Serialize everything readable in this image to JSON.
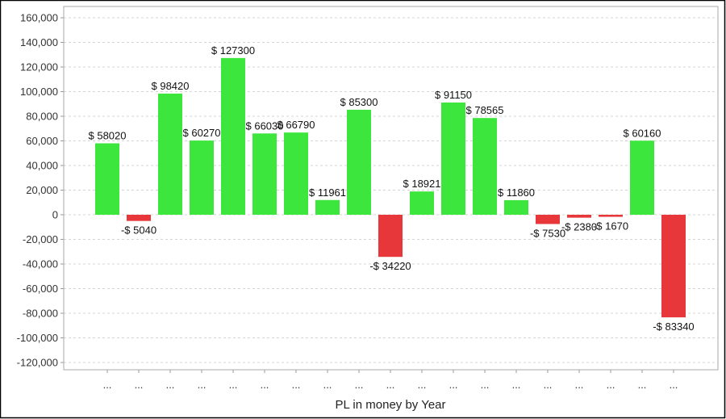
{
  "chart_data": {
    "type": "bar",
    "title": "",
    "xlabel": "PL in money by Year",
    "ylabel": "",
    "ylim": [
      -120000,
      160000
    ],
    "yticks": [
      160000,
      140000,
      120000,
      100000,
      80000,
      60000,
      40000,
      20000,
      0,
      -20000,
      -40000,
      -60000,
      -80000,
      -100000,
      -120000
    ],
    "ytick_labels": [
      "160,000",
      "140,000",
      "120,000",
      "100,000",
      "80,000",
      "60,000",
      "40,000",
      "20,000",
      "0",
      "-20,000",
      "-40,000",
      "-60,000",
      "-80,000",
      "-100,000",
      "-120,000"
    ],
    "categories": [
      "...",
      "...",
      "...",
      "...",
      "...",
      "...",
      "...",
      "...",
      "...",
      "...",
      "...",
      "...",
      "...",
      "...",
      "...",
      "...",
      "...",
      "...",
      "..."
    ],
    "values": [
      58020,
      -5040,
      98420,
      60270,
      127300,
      66030,
      66790,
      11961,
      85300,
      -34220,
      18921,
      91150,
      78565,
      11860,
      -7530,
      -2380,
      -1670,
      60160,
      -83340
    ],
    "data_labels": [
      "$ 58020",
      "-$ 5040",
      "$ 98420",
      "$ 60270",
      "$ 127300",
      "$ 66030",
      "$ 66790",
      "$ 11961",
      "$ 85300",
      "-$ 34220",
      "$ 18921",
      "$ 91150",
      "$ 78565",
      "$ 11860",
      "-$ 7530",
      "-$ 2380",
      "-$ 1670",
      "$ 60160",
      "-$ 83340"
    ],
    "grid": true,
    "colors": {
      "positive": "#3de63d",
      "negative": "#e8373a"
    }
  }
}
